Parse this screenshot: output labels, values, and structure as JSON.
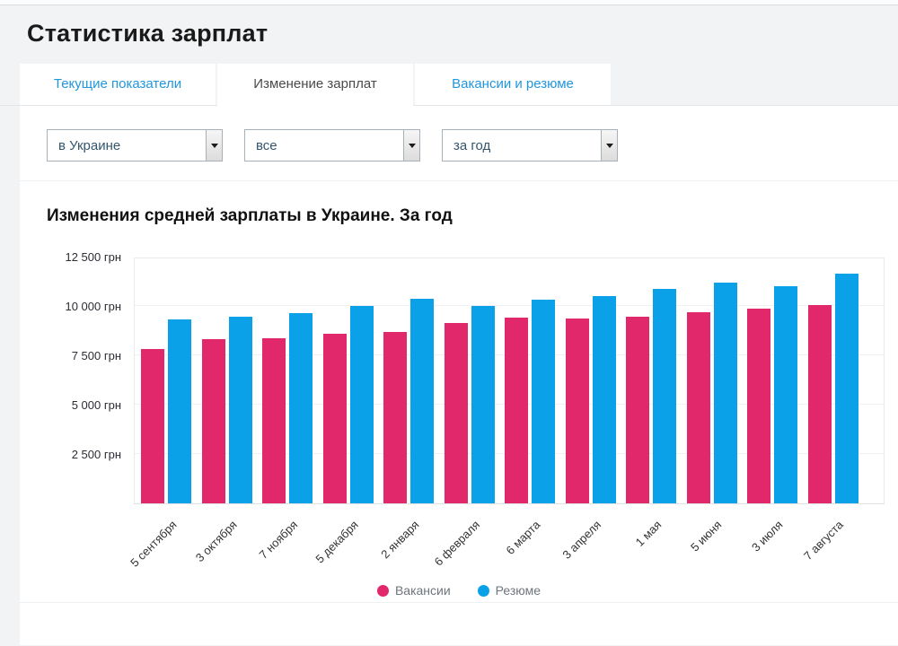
{
  "page": {
    "title": "Статистика зарплат"
  },
  "tabs": [
    {
      "label": "Текущие показатели",
      "active": false
    },
    {
      "label": "Изменение зарплат",
      "active": true
    },
    {
      "label": "Вакансии и резюме",
      "active": false
    }
  ],
  "filters": {
    "region": {
      "value": "в Украине"
    },
    "category": {
      "value": "все"
    },
    "period": {
      "value": "за год"
    }
  },
  "chart_data": {
    "type": "bar",
    "title": "Изменения средней зарплаты в Украине. За год",
    "categories": [
      "5 сентября",
      "3 октября",
      "7 ноября",
      "5 декабря",
      "2 января",
      "6 февраля",
      "6 марта",
      "3 апреля",
      "1 мая",
      "5 июня",
      "3 июля",
      "7 августа"
    ],
    "series": [
      {
        "name": "Вакансии",
        "color": "#e0286a",
        "values": [
          7800,
          8300,
          8350,
          8600,
          8700,
          9150,
          9400,
          9350,
          9450,
          9700,
          9850,
          10050
        ]
      },
      {
        "name": "Резюме",
        "color": "#0ba1e8",
        "values": [
          9300,
          9450,
          9650,
          10000,
          10350,
          10000,
          10300,
          10500,
          10850,
          11200,
          11000,
          11650
        ]
      }
    ],
    "yticks": [
      2500,
      5000,
      7500,
      10000,
      12500
    ],
    "ytick_labels": [
      "2 500 грн",
      "5 000 грн",
      "7 500 грн",
      "10 000 грн",
      "12 500 грн"
    ],
    "ylim": [
      0,
      12500
    ],
    "unit": "грн",
    "grid": true,
    "legend_position": "bottom"
  }
}
